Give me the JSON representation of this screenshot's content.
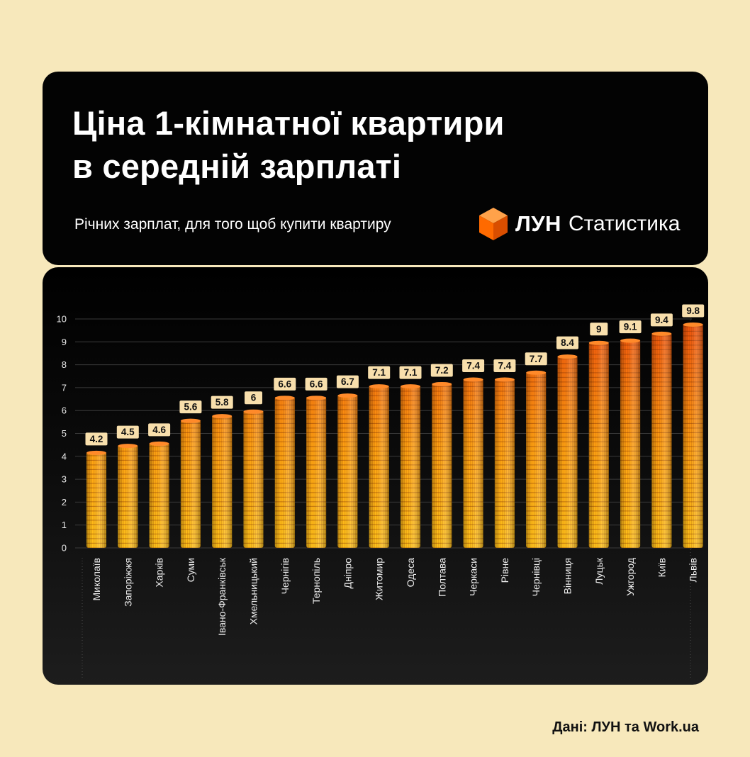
{
  "header": {
    "title": "Ціна 1-кімнатної квартири\nв середній зарплаті",
    "subtitle": "Річних зарплат, для того щоб купити квартиру",
    "brand": "ЛУН",
    "brand_suffix": "Статистика",
    "brand_icon": "orange-cube-icon"
  },
  "source": "Дані: ЛУН та Work.ua",
  "colors": {
    "page_bg": "#f7e8bb",
    "card_bg": "#030303",
    "label_bg": "#f8dfac",
    "coin_light": "#ffc21a",
    "coin_dark": "#f0520c"
  },
  "chart_data": {
    "type": "bar",
    "categories": [
      "Миколаїв",
      "Запоріжжя",
      "Харків",
      "Суми",
      "Івано-Франківськ",
      "Хмельницький",
      "Чернігів",
      "Тернопіль",
      "Дніпро",
      "Житомир",
      "Одеса",
      "Полтава",
      "Черкаси",
      "Рівне",
      "Чернівці",
      "Вінниця",
      "Луцьк",
      "Ужгород",
      "Київ",
      "Львів"
    ],
    "values": [
      4.2,
      4.5,
      4.6,
      5.6,
      5.8,
      6,
      6.6,
      6.6,
      6.7,
      7.1,
      7.1,
      7.2,
      7.4,
      7.4,
      7.7,
      8.4,
      9,
      9.1,
      9.4,
      9.8
    ],
    "value_labels": [
      "4.2",
      "4.5",
      "4.6",
      "5.6",
      "5.8",
      "6",
      "6.6",
      "6.6",
      "6.7",
      "7.1",
      "7.1",
      "7.2",
      "7.4",
      "7.4",
      "7.7",
      "8.4",
      "9",
      "9.1",
      "9.4",
      "9.8"
    ],
    "y_ticks": [
      "0",
      "1",
      "2",
      "3",
      "4",
      "5",
      "6",
      "7",
      "8",
      "9",
      "10"
    ],
    "ylim": [
      0,
      10
    ],
    "xlabel": "",
    "ylabel": "",
    "grid": true,
    "bar_style": "stacked coins"
  }
}
